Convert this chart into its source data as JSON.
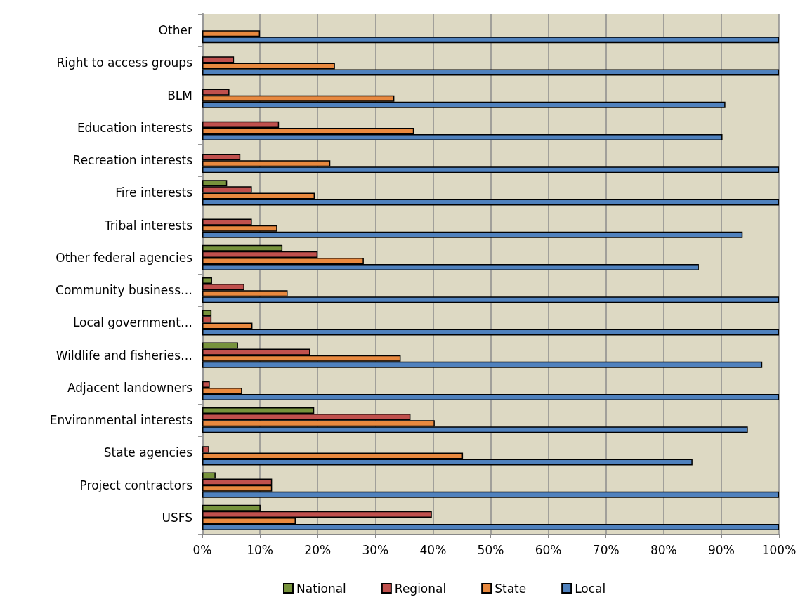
{
  "chart_data": {
    "type": "bar",
    "orientation": "horizontal",
    "categories": [
      "Other",
      "Right to access groups",
      "BLM",
      "Education interests",
      "Recreation interests",
      "Fire interests",
      "Tribal interests",
      "Other federal agencies",
      "Community business…",
      "Local government…",
      "Wildlife and fisheries…",
      "Adjacent landowners",
      "Environmental interests",
      "State agencies",
      "Project contractors",
      "USFS"
    ],
    "series": [
      {
        "name": "National",
        "color": "#77933c",
        "values": [
          null,
          null,
          null,
          null,
          null,
          4.3,
          null,
          13.9,
          1.7,
          1.6,
          6.2,
          null,
          19.4,
          null,
          2.3,
          10.1
        ]
      },
      {
        "name": "Regional",
        "color": "#c0504d",
        "values": [
          null,
          5.5,
          4.7,
          13.3,
          6.6,
          8.6,
          8.6,
          20.0,
          7.3,
          1.6,
          18.7,
          1.3,
          36.1,
          1.2,
          12.1,
          39.8
        ]
      },
      {
        "name": "State",
        "color": "#e8893f",
        "values": [
          10,
          23.0,
          33.3,
          36.7,
          22.2,
          19.5,
          13.0,
          28.0,
          14.8,
          8.7,
          34.4,
          6.9,
          40.3,
          45.2,
          12.1,
          16.2
        ]
      },
      {
        "name": "Local",
        "color": "#4f81bd",
        "values": [
          100,
          100,
          90.7,
          90.2,
          100,
          100,
          93.7,
          86.1,
          100,
          100,
          97.1,
          100,
          94.6,
          85.0,
          100,
          100
        ]
      }
    ],
    "xlim": [
      0,
      100
    ],
    "xticks": [
      {
        "value": 0,
        "label": "0%"
      },
      {
        "value": 10,
        "label": "10%"
      },
      {
        "value": 20,
        "label": "20%"
      },
      {
        "value": 30,
        "label": "30%"
      },
      {
        "value": 40,
        "label": "40%"
      },
      {
        "value": 50,
        "label": "50%"
      },
      {
        "value": 60,
        "label": "60%"
      },
      {
        "value": 70,
        "label": "70%"
      },
      {
        "value": 80,
        "label": "80%"
      },
      {
        "value": 90,
        "label": "90%"
      },
      {
        "value": 100,
        "label": "100%"
      }
    ],
    "grid": "x",
    "legend": "bottom"
  }
}
